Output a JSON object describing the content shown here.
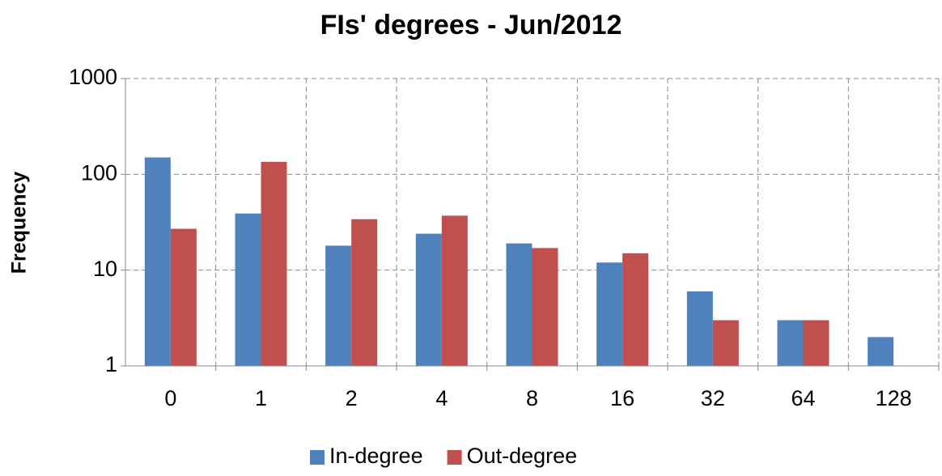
{
  "chart_data": {
    "type": "bar",
    "title": "FIs' degrees - Jun/2012",
    "y_label": "Frequency",
    "categories": [
      "0",
      "1",
      "2",
      "4",
      "8",
      "16",
      "32",
      "64",
      "128"
    ],
    "series": [
      {
        "name": "In-degree",
        "color": "#4f81bd",
        "values": [
          150,
          39,
          18,
          24,
          19,
          12,
          6,
          3,
          2
        ]
      },
      {
        "name": "Out-degree",
        "color": "#c0504d",
        "values": [
          27,
          135,
          34,
          37,
          17,
          15,
          3,
          3,
          null
        ]
      }
    ],
    "ylim": [
      1,
      1000
    ],
    "yticks": [
      1,
      10,
      100,
      1000
    ],
    "yscale": "log",
    "grid": true,
    "legend": "bottom"
  }
}
